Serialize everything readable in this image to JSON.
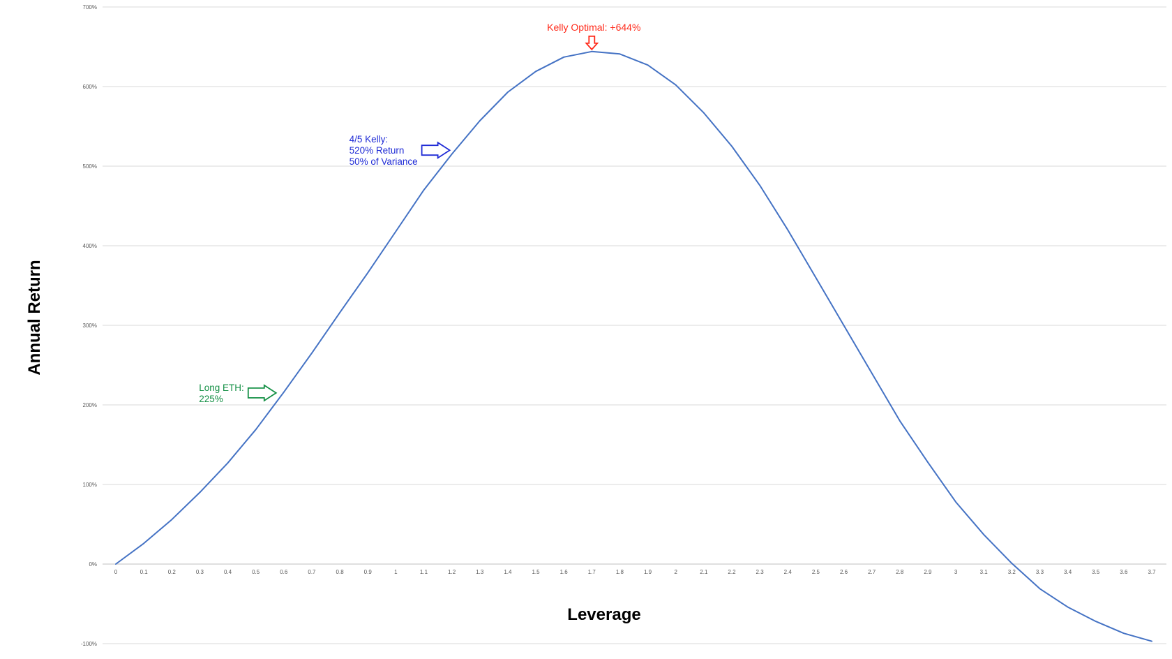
{
  "chart_data": {
    "type": "line",
    "title": "",
    "xlabel": "Leverage",
    "ylabel": "Annual Return",
    "ylim": [
      -100,
      700
    ],
    "y_ticks": [
      -100,
      0,
      100,
      200,
      300,
      400,
      500,
      600,
      700
    ],
    "y_tick_labels": [
      "-100%",
      "0%",
      "100%",
      "200%",
      "300%",
      "400%",
      "500%",
      "600%",
      "700%"
    ],
    "grid": "horizontal",
    "legend": "none",
    "x": [
      0,
      0.1,
      0.2,
      0.3,
      0.4,
      0.5,
      0.6,
      0.7,
      0.8,
      0.9,
      1,
      1.1,
      1.2,
      1.3,
      1.4,
      1.5,
      1.6,
      1.7,
      1.8,
      1.9,
      2,
      2.1,
      2.2,
      2.3,
      2.4,
      2.5,
      2.6,
      2.7,
      2.8,
      2.9,
      3,
      3.1,
      3.2,
      3.3,
      3.4,
      3.5,
      3.6,
      3.7
    ],
    "x_tick_labels": [
      "0",
      "0.1",
      "0.2",
      "0.3",
      "0.4",
      "0.5",
      "0.6",
      "0.7",
      "0.8",
      "0.9",
      "1",
      "1.1",
      "1.2",
      "1.3",
      "1.4",
      "1.5",
      "1.6",
      "1.7",
      "1.8",
      "1.9",
      "2",
      "2.1",
      "2.2",
      "2.3",
      "2.4",
      "2.5",
      "2.6",
      "2.7",
      "2.8",
      "2.9",
      "3",
      "3.1",
      "3.2",
      "3.3",
      "3.4",
      "3.5",
      "3.6",
      "3.7"
    ],
    "series": [
      {
        "values": [
          0,
          26,
          56,
          90,
          127,
          169,
          216,
          265,
          316,
          366,
          418,
          470,
          515,
          557,
          593,
          619,
          637,
          644,
          641,
          627,
          602,
          567,
          525,
          476,
          420,
          360,
          300,
          240,
          180,
          128,
          78,
          37,
          1,
          -31,
          -54,
          -72,
          -87,
          -97
        ],
        "color": "#4472c4"
      }
    ],
    "annotations": [
      {
        "id": "kelly",
        "lines": [
          "Kelly Optimal: +644%"
        ],
        "color": "#ff2a1a",
        "x": 1.7,
        "y": 644,
        "arrow": "down"
      },
      {
        "id": "four-fifths",
        "lines": [
          "4/5 Kelly:",
          "520% Return",
          "50% of Variance"
        ],
        "color": "#1f2bd6",
        "x": 1.2,
        "y": 520,
        "arrow": "right"
      },
      {
        "id": "long-eth",
        "lines": [
          "Long ETH:",
          "225%"
        ],
        "color": "#149045",
        "x": 0.58,
        "y": 215,
        "arrow": "right"
      }
    ]
  }
}
